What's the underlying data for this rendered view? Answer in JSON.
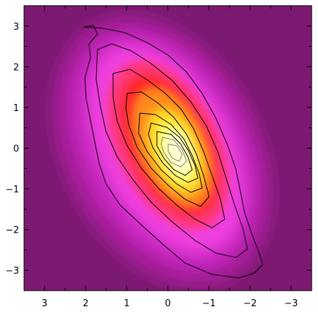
{
  "chart_data": {
    "type": "heatmap",
    "title": "",
    "xlabel": "",
    "ylabel": "",
    "x_axis_direction": "reversed",
    "xlim": [
      3.5,
      -3.5
    ],
    "ylim": [
      -3.5,
      3.5
    ],
    "x_ticks": [
      3,
      2,
      1,
      0,
      -1,
      -2,
      -3
    ],
    "x_tick_labels": [
      "3",
      "2",
      "1",
      "0",
      "−1",
      "−2",
      "−3"
    ],
    "y_ticks": [
      3,
      2,
      1,
      0,
      -1,
      -2,
      -3
    ],
    "y_tick_labels": [
      "3",
      "2",
      "1",
      "0",
      "−1",
      "−2",
      "−3"
    ],
    "grid": false,
    "legend": "none",
    "colormap": [
      "#7c1a72",
      "#c020b8",
      "#ff40e0",
      "#ff3040",
      "#ffb020",
      "#ffff60",
      "#ffffff"
    ],
    "density_peak": {
      "x": -0.3,
      "y": 0.1
    },
    "correlation_sign": "negative",
    "contour_levels": 9
  }
}
